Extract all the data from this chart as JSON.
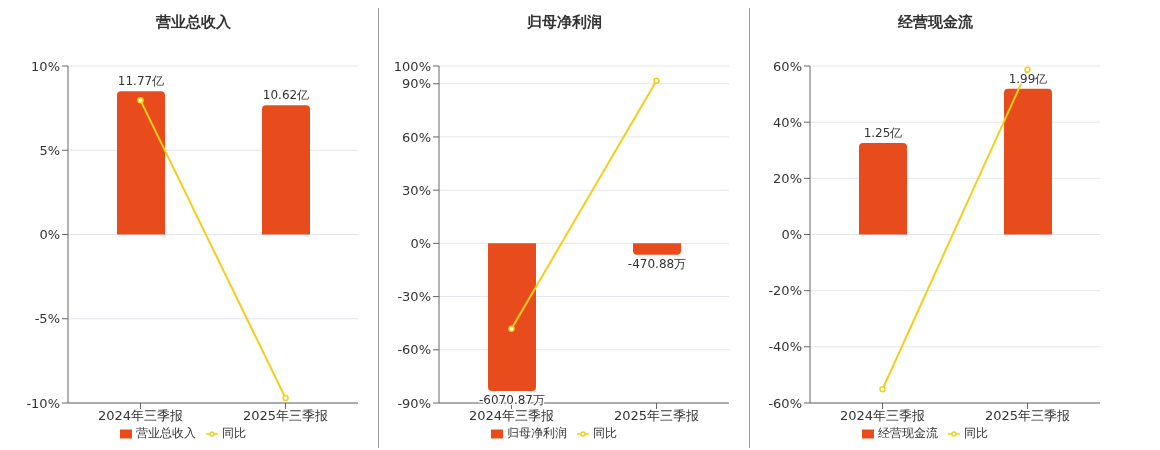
{
  "chart_data": [
    {
      "type": "bar",
      "title": "营业总收入",
      "categories": [
        "2024年三季报",
        "2025年三季报"
      ],
      "ylim": [
        -10,
        10
      ],
      "yticks": [
        {
          "value": -10,
          "label": "-10%"
        },
        {
          "value": -5,
          "label": "-5%"
        },
        {
          "value": 0,
          "label": "0%"
        },
        {
          "value": 5,
          "label": "5%"
        },
        {
          "value": 10,
          "label": "10%"
        }
      ],
      "y2lim": [
        -13.85,
        13.85
      ],
      "grid": "y",
      "legend": "bottom",
      "marker": "circle",
      "series": [
        {
          "name": "营业总收入",
          "axis": "y2",
          "color": "#e84c1d",
          "values": [
            11.77,
            10.62
          ],
          "value_labels": [
            "11.77亿",
            "10.62亿"
          ]
        },
        {
          "name": "同比",
          "type": "line",
          "color": "#f2cf1a",
          "values": [
            7.96,
            -9.7
          ]
        }
      ]
    },
    {
      "type": "bar",
      "title": "归母净利润",
      "categories": [
        "2024年三季报",
        "2025年三季报"
      ],
      "ylim": [
        -90,
        100
      ],
      "yticks": [
        {
          "value": -90,
          "label": "-90%"
        },
        {
          "value": -60,
          "label": "-60%"
        },
        {
          "value": -30,
          "label": "-30%"
        },
        {
          "value": 0,
          "label": "0%"
        },
        {
          "value": 30,
          "label": "30%"
        },
        {
          "value": 60,
          "label": "60%"
        },
        {
          "value": 90,
          "label": "90%"
        },
        {
          "value": 100,
          "label": "100%"
        }
      ],
      "y2lim": [
        -6567,
        7297
      ],
      "grid": "y",
      "legend": "bottom",
      "marker": "circle",
      "series": [
        {
          "name": "归母净利润",
          "axis": "y2",
          "color": "#e84c1d",
          "values": [
            -6070.87,
            -470.88
          ],
          "value_labels": [
            "-6070.87万",
            "-470.88万"
          ]
        },
        {
          "name": "同比",
          "type": "line",
          "color": "#f2cf1a",
          "values": [
            -48.1,
            91.7
          ]
        }
      ]
    },
    {
      "type": "bar",
      "title": "经营现金流",
      "categories": [
        "2024年三季报",
        "2025年三季报"
      ],
      "ylim": [
        -60,
        60
      ],
      "yticks": [
        {
          "value": -60,
          "label": "-60%"
        },
        {
          "value": -40,
          "label": "-40%"
        },
        {
          "value": -20,
          "label": "-20%"
        },
        {
          "value": 0,
          "label": "0%"
        },
        {
          "value": 20,
          "label": "20%"
        },
        {
          "value": 40,
          "label": "40%"
        },
        {
          "value": 60,
          "label": "60%"
        }
      ],
      "y2lim": [
        -2.3,
        2.3
      ],
      "grid": "y",
      "legend": "bottom",
      "marker": "circle",
      "series": [
        {
          "name": "经营现金流",
          "axis": "y2",
          "color": "#e84c1d",
          "values": [
            1.25,
            1.99
          ],
          "value_labels": [
            "1.25亿",
            "1.99亿"
          ]
        },
        {
          "name": "同比",
          "type": "line",
          "color": "#f2cf1a",
          "values": [
            -55.1,
            58.7
          ]
        }
      ]
    }
  ]
}
